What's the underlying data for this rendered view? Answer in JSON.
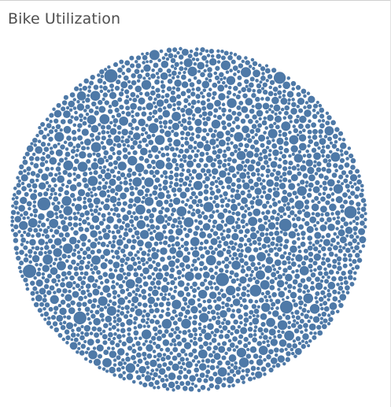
{
  "page": {
    "title": "Bike Utilization"
  },
  "chart_data": {
    "type": "packed-bubble",
    "title": "Bike Utilization",
    "xlabel": "",
    "ylabel": "",
    "legend": "none",
    "mark_color": "#4e79a7",
    "mark_count": 5200,
    "value_distribution": {
      "description": "one circle per bike; circle size proportional to utilization",
      "tiny_share": 0.68,
      "small_share": 0.24,
      "medium_share": 0.06,
      "large_share": 0.018,
      "largest_share": 0.002,
      "relative_values": {
        "tiny": 1,
        "small": 2.2,
        "medium": 4.5,
        "large": 8,
        "largest": 14
      }
    }
  }
}
